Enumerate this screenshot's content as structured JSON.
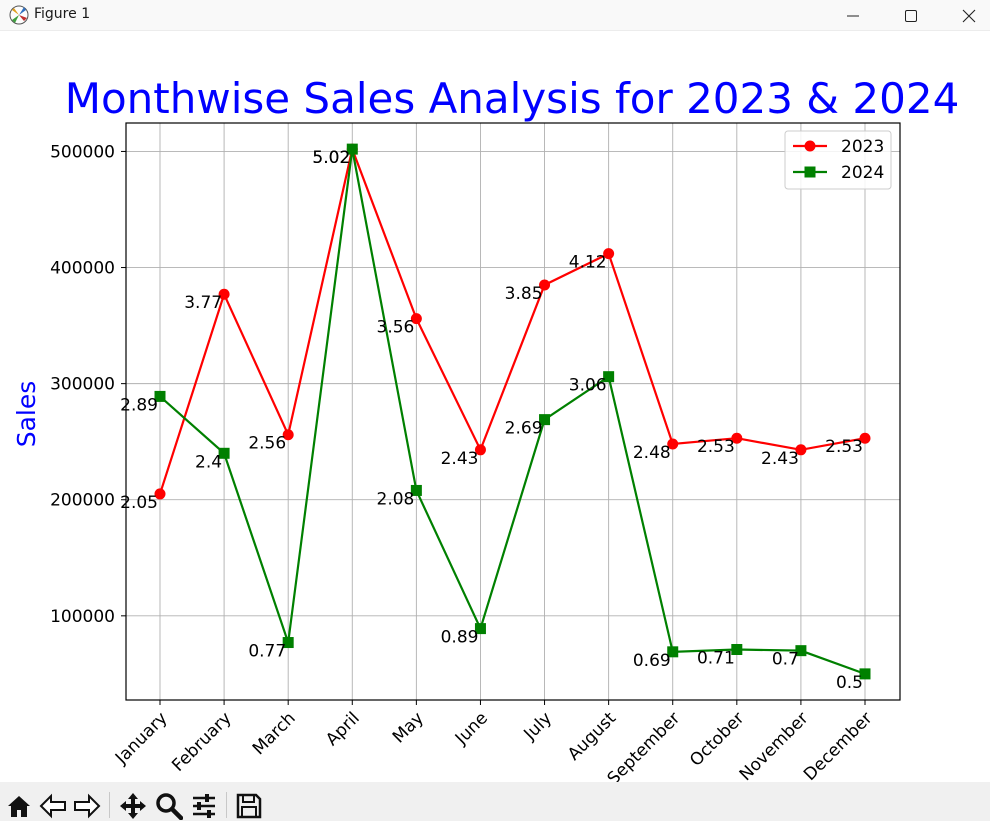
{
  "window": {
    "title": "Figure 1",
    "controls": [
      "minimize-icon",
      "maximize-icon",
      "close-icon"
    ]
  },
  "toolbar": {
    "tools": [
      "home-icon",
      "back-arrow-icon",
      "forward-arrow-icon",
      "pan-icon",
      "zoom-icon",
      "configure-subplots-icon",
      "save-icon"
    ]
  },
  "chart_data": {
    "type": "line",
    "title": "Monthwise Sales Analysis for 2023 & 2024",
    "xlabel": "",
    "ylabel": "Sales",
    "categories": [
      "January",
      "February",
      "March",
      "April",
      "May",
      "June",
      "July",
      "August",
      "September",
      "October",
      "November",
      "December"
    ],
    "series": [
      {
        "name": "2023",
        "color": "#ff0000",
        "marker": "circle",
        "values": [
          205000,
          377000,
          256000,
          502000,
          356000,
          243000,
          385000,
          412000,
          248000,
          253000,
          243000,
          253000
        ],
        "labels": [
          "2.05",
          "3.77",
          "2.56",
          "5.02",
          "3.56",
          "2.43",
          "3.85",
          "4.12",
          "2.48",
          "2.53",
          "2.43",
          "2.53"
        ]
      },
      {
        "name": "2024",
        "color": "#008000",
        "marker": "square",
        "values": [
          289000,
          240000,
          77000,
          502000,
          208000,
          89000,
          269000,
          306000,
          69000,
          71000,
          70000,
          50000
        ],
        "labels": [
          "2.89",
          "2.4",
          "0.77",
          "5.02",
          "2.08",
          "0.89",
          "2.69",
          "3.06",
          "0.69",
          "0.71",
          "0.7",
          "0.5"
        ]
      }
    ],
    "ylim": [
      27500,
      524500
    ],
    "yticks": [
      100000,
      200000,
      300000,
      400000,
      500000
    ],
    "yticklabels": [
      "100000",
      "200000",
      "300000",
      "400000",
      "500000"
    ],
    "grid": true,
    "legend": "top-right",
    "title_color": "#0000ff",
    "ylabel_color": "#0000ff"
  }
}
